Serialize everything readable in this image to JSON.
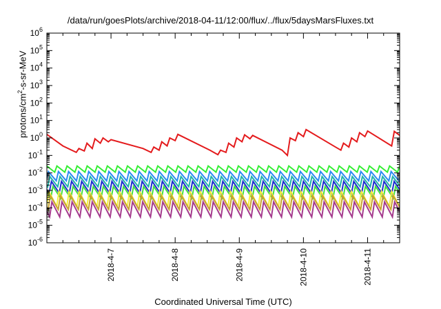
{
  "chart_data": {
    "type": "line",
    "title": "/data/run/goesPlots/archive/2018-04-11/12:00/flux/../flux/5daysMarsFluxes.txt",
    "xlabel": "Coordinated Universal Time (UTC)",
    "ylabel": {
      "prefix": "protons/cm",
      "sup": "2",
      "suffix": "-s-sr-MeV"
    },
    "y_scale": "log",
    "ylim": [
      1e-06,
      1000000.0
    ],
    "y_ticks": [
      {
        "base": "10",
        "exp": "-6",
        "value": 1e-06
      },
      {
        "base": "10",
        "exp": "-5",
        "value": 1e-05
      },
      {
        "base": "10",
        "exp": "-4",
        "value": 0.0001
      },
      {
        "base": "10",
        "exp": "-3",
        "value": 0.001
      },
      {
        "base": "10",
        "exp": "-2",
        "value": 0.01
      },
      {
        "base": "10",
        "exp": "-1",
        "value": 0.1
      },
      {
        "base": "10",
        "exp": "0",
        "value": 1
      },
      {
        "base": "10",
        "exp": "1",
        "value": 10.0
      },
      {
        "base": "10",
        "exp": "2",
        "value": 100.0
      },
      {
        "base": "10",
        "exp": "3",
        "value": 1000.0
      },
      {
        "base": "10",
        "exp": "4",
        "value": 10000.0
      },
      {
        "base": "10",
        "exp": "5",
        "value": 100000.0
      },
      {
        "base": "10",
        "exp": "6",
        "value": 1000000.0
      }
    ],
    "xlim": [
      "2018-04-06 00:00",
      "2018-04-11 12:00"
    ],
    "x_ticks": [
      "2018-4-7",
      "2018-4-8",
      "2018-4-9",
      "2018-4-10",
      "2018-4-11"
    ],
    "x_tick_times": [
      "2018-04-07 00:00",
      "2018-04-08 00:00",
      "2018-04-09 00:00",
      "2018-04-10 00:00",
      "2018-04-11 00:00"
    ],
    "grid": false,
    "legend": "none",
    "series": [
      {
        "color": "#e41a1c",
        "pattern": "sawtooth",
        "points": [
          [
            "2018-04-06 00:00",
            1.6
          ],
          [
            "2018-04-06 06:00",
            0.35
          ],
          [
            "2018-04-06 11:00",
            0.15
          ],
          [
            "2018-04-06 12:00",
            0.25
          ],
          [
            "2018-04-06 14:00",
            0.18
          ],
          [
            "2018-04-06 15:00",
            0.5
          ],
          [
            "2018-04-06 17:00",
            0.25
          ],
          [
            "2018-04-06 18:00",
            0.9
          ],
          [
            "2018-04-06 20:00",
            0.5
          ],
          [
            "2018-04-06 21:00",
            1.0
          ],
          [
            "2018-04-06 23:00",
            0.6
          ],
          [
            "2018-04-07 00:00",
            0.8
          ],
          [
            "2018-04-07 12:00",
            0.25
          ],
          [
            "2018-04-07 15:00",
            0.15
          ],
          [
            "2018-04-07 16:00",
            0.3
          ],
          [
            "2018-04-07 18:00",
            0.2
          ],
          [
            "2018-04-07 19:00",
            0.6
          ],
          [
            "2018-04-07 21:00",
            0.35
          ],
          [
            "2018-04-07 22:00",
            1.0
          ],
          [
            "2018-04-08 00:00",
            0.7
          ],
          [
            "2018-04-08 01:00",
            1.6
          ],
          [
            "2018-04-08 13:00",
            0.2
          ],
          [
            "2018-04-08 16:00",
            0.11
          ],
          [
            "2018-04-08 17:00",
            0.2
          ],
          [
            "2018-04-08 19:00",
            0.15
          ],
          [
            "2018-04-08 20:00",
            0.5
          ],
          [
            "2018-04-08 22:00",
            0.3
          ],
          [
            "2018-04-08 23:00",
            1.0
          ],
          [
            "2018-04-09 01:00",
            0.6
          ],
          [
            "2018-04-09 02:00",
            1.5
          ],
          [
            "2018-04-09 04:00",
            0.9
          ],
          [
            "2018-04-09 05:00",
            1.4
          ],
          [
            "2018-04-09 16:00",
            0.2
          ],
          [
            "2018-04-09 18:00",
            0.1
          ],
          [
            "2018-04-09 19:00",
            1.0
          ],
          [
            "2018-04-09 21:00",
            0.7
          ],
          [
            "2018-04-09 22:00",
            2.0
          ],
          [
            "2018-04-10 00:00",
            1.2
          ],
          [
            "2018-04-10 01:00",
            3.0
          ],
          [
            "2018-04-10 12:00",
            0.3
          ],
          [
            "2018-04-10 14:00",
            0.2
          ],
          [
            "2018-04-10 15:00",
            0.5
          ],
          [
            "2018-04-10 17:00",
            0.3
          ],
          [
            "2018-04-10 18:00",
            1.0
          ],
          [
            "2018-04-10 20:00",
            0.6
          ],
          [
            "2018-04-10 21:00",
            2.0
          ],
          [
            "2018-04-10 23:00",
            1.2
          ],
          [
            "2018-04-11 00:00",
            2.5
          ],
          [
            "2018-04-11 09:00",
            0.35
          ],
          [
            "2018-04-11 10:00",
            2.4
          ],
          [
            "2018-04-11 12:00",
            1.4
          ]
        ]
      },
      {
        "color": "#33ee33",
        "pattern": "oscillation",
        "min": 0.011,
        "max": 0.025,
        "cycles": 35,
        "phase": 0.0
      },
      {
        "color": "#2a8cf0",
        "pattern": "oscillation",
        "min": 0.0035,
        "max": 0.012,
        "cycles": 35,
        "phase": 0.15
      },
      {
        "color": "#1fb3a8",
        "pattern": "oscillation",
        "min": 0.0016,
        "max": 0.0062,
        "cycles": 35,
        "phase": 0.3
      },
      {
        "color": "#1c2fcf",
        "pattern": "oscillation",
        "min": 0.0007,
        "max": 0.0033,
        "cycles": 35,
        "phase": 0.45
      },
      {
        "color": "#44dd44",
        "pattern": "oscillation",
        "min": 0.00035,
        "max": 0.0017,
        "cycles": 35,
        "phase": 0.6
      },
      {
        "color": "#f5f03c",
        "pattern": "oscillation",
        "min": 0.00012,
        "max": 0.0009,
        "cycles": 35,
        "phase": 0.2
      },
      {
        "color": "#c9a230",
        "pattern": "oscillation",
        "min": 8e-05,
        "max": 0.0005,
        "cycles": 35,
        "phase": 0.35
      },
      {
        "color": "#a43a8c",
        "pattern": "oscillation",
        "min": 3e-05,
        "max": 0.00022,
        "cycles": 35,
        "phase": 0.5
      }
    ]
  }
}
